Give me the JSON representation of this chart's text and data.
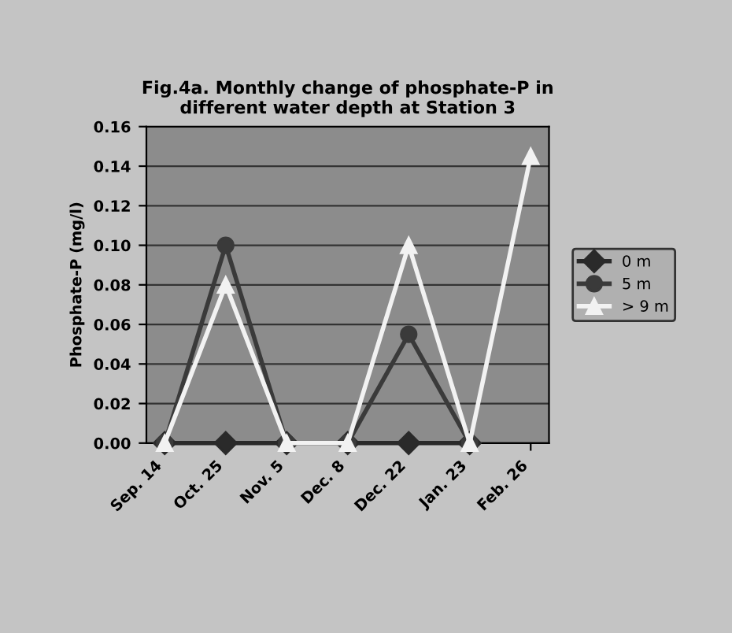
{
  "chart_data": {
    "type": "line",
    "title": "Fig.4a. Monthly change of phosphate-P in\ndifferent water depth at Station 3",
    "ylabel": "Phosphate-P (mg/l)",
    "categories": [
      "Sep. 14",
      "Oct. 25",
      "Nov. 5",
      "Dec. 8",
      "Dec. 22",
      "Jan. 23",
      "Feb. 26"
    ],
    "series": [
      {
        "name": "0 m",
        "color": "#2a2a2a",
        "marker": "diamond",
        "values": [
          0,
          0,
          0,
          0,
          0,
          0,
          null
        ]
      },
      {
        "name": "5 m",
        "color": "#3a3a3a",
        "marker": "circle",
        "values": [
          0,
          0.1,
          0,
          0,
          0.055,
          0,
          null
        ]
      },
      {
        "name": "> 9 m",
        "color": "#f2f2f2",
        "marker": "triangle",
        "values": [
          0,
          0.08,
          0,
          0,
          0.1,
          0,
          0.145
        ]
      }
    ],
    "ylim": [
      0,
      0.16
    ],
    "yticks": [
      {
        "value": 0,
        "label": "0.00"
      },
      0.02,
      0.04,
      0.06,
      0.08,
      {
        "value": 0.1,
        "label": "0.10"
      },
      0.12,
      0.14,
      0.16
    ],
    "grid": "y",
    "legend": "right"
  }
}
